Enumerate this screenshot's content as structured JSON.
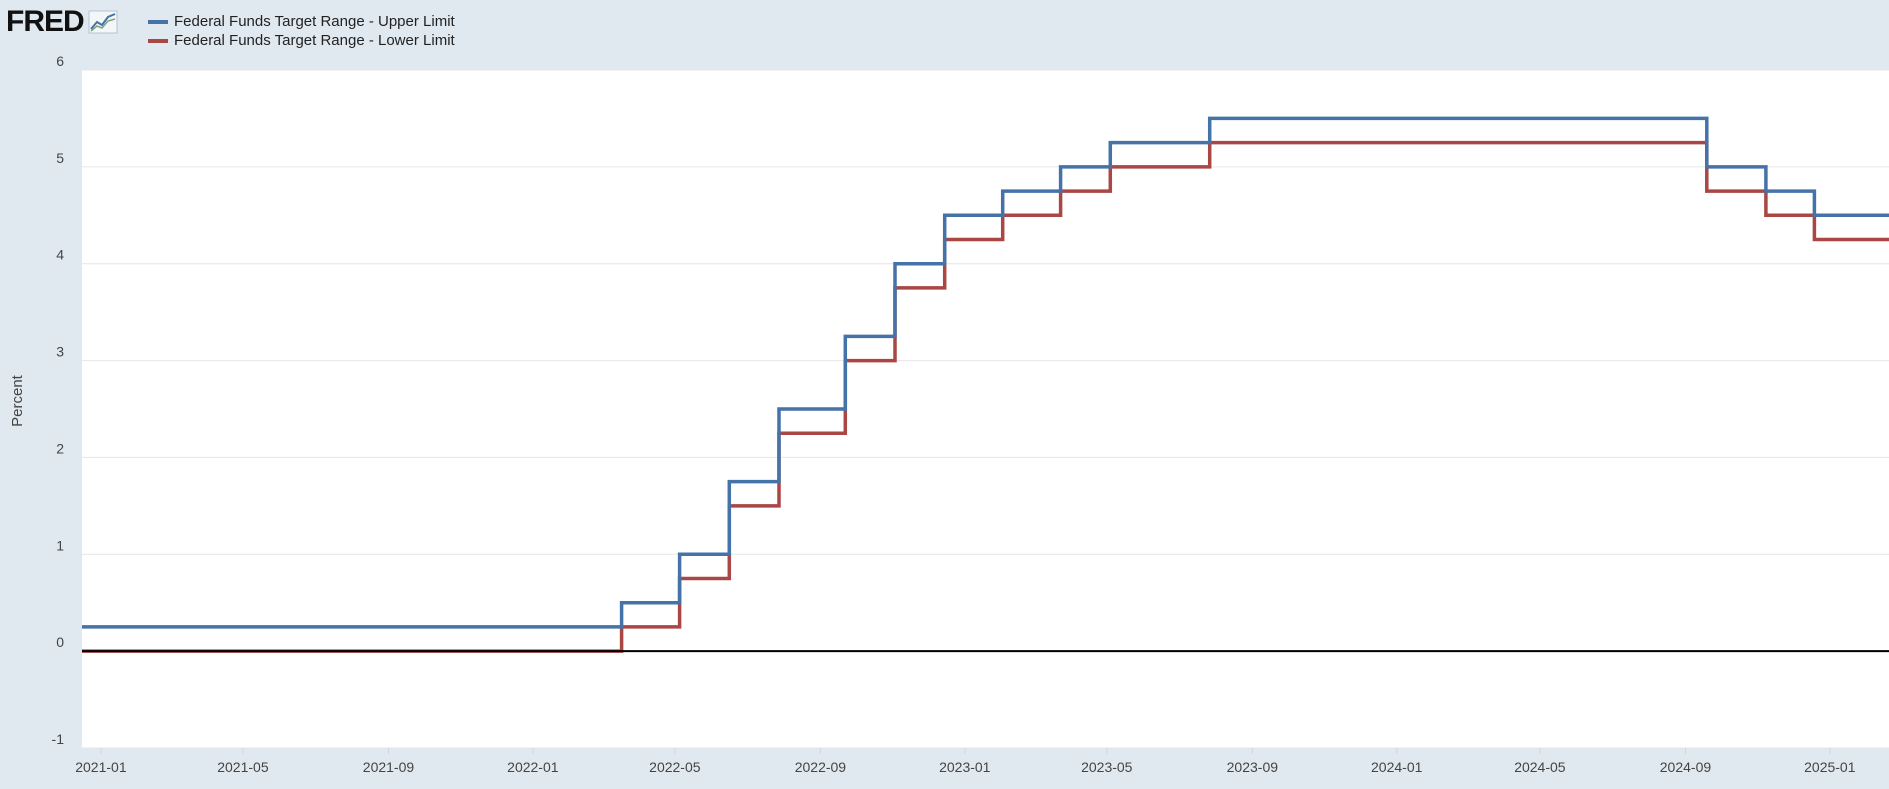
{
  "brand": {
    "logo_text": "FRED",
    "icon": "line-chart-icon",
    "background_color": "#e1e9f0"
  },
  "legend": [
    {
      "label": "Federal Funds Target Range - Upper Limit",
      "color": "#4572a7"
    },
    {
      "label": "Federal Funds Target Range - Lower Limit",
      "color": "#aa4643"
    }
  ],
  "chart_data": {
    "type": "line",
    "step": true,
    "title": "",
    "xlabel": "",
    "ylabel": "Percent",
    "ylim": [
      -1,
      6
    ],
    "xlim": [
      "2020-12-16",
      "2025-02-20"
    ],
    "yticks": [
      "6",
      "5",
      "4",
      "3",
      "2",
      "1",
      "0",
      "-1"
    ],
    "xticks": [
      "2021-01",
      "2021-05",
      "2021-09",
      "2022-01",
      "2022-05",
      "2022-09",
      "2023-01",
      "2023-05",
      "2023-09",
      "2024-01",
      "2024-05",
      "2024-09",
      "2025-01"
    ],
    "grid": true,
    "zero_line": true,
    "legend_position": "top-left",
    "series": [
      {
        "name": "Federal Funds Target Range - Upper Limit",
        "color": "#4572a7",
        "points": [
          [
            "2020-12-16",
            0.25
          ],
          [
            "2022-03-17",
            0.5
          ],
          [
            "2022-05-05",
            1.0
          ],
          [
            "2022-06-16",
            1.75
          ],
          [
            "2022-07-28",
            2.5
          ],
          [
            "2022-09-22",
            3.25
          ],
          [
            "2022-11-03",
            4.0
          ],
          [
            "2022-12-15",
            4.5
          ],
          [
            "2023-02-02",
            4.75
          ],
          [
            "2023-03-23",
            5.0
          ],
          [
            "2023-05-04",
            5.25
          ],
          [
            "2023-07-27",
            5.5
          ],
          [
            "2024-09-19",
            5.0
          ],
          [
            "2024-11-08",
            4.75
          ],
          [
            "2024-12-19",
            4.5
          ],
          [
            "2025-02-20",
            4.5
          ]
        ]
      },
      {
        "name": "Federal Funds Target Range - Lower Limit",
        "color": "#aa4643",
        "points": [
          [
            "2020-12-16",
            0.0
          ],
          [
            "2022-03-17",
            0.25
          ],
          [
            "2022-05-05",
            0.75
          ],
          [
            "2022-06-16",
            1.5
          ],
          [
            "2022-07-28",
            2.25
          ],
          [
            "2022-09-22",
            3.0
          ],
          [
            "2022-11-03",
            3.75
          ],
          [
            "2022-12-15",
            4.25
          ],
          [
            "2023-02-02",
            4.5
          ],
          [
            "2023-03-23",
            4.75
          ],
          [
            "2023-05-04",
            5.0
          ],
          [
            "2023-07-27",
            5.25
          ],
          [
            "2024-09-19",
            4.75
          ],
          [
            "2024-11-08",
            4.5
          ],
          [
            "2024-12-19",
            4.25
          ],
          [
            "2025-02-20",
            4.25
          ]
        ]
      }
    ]
  }
}
